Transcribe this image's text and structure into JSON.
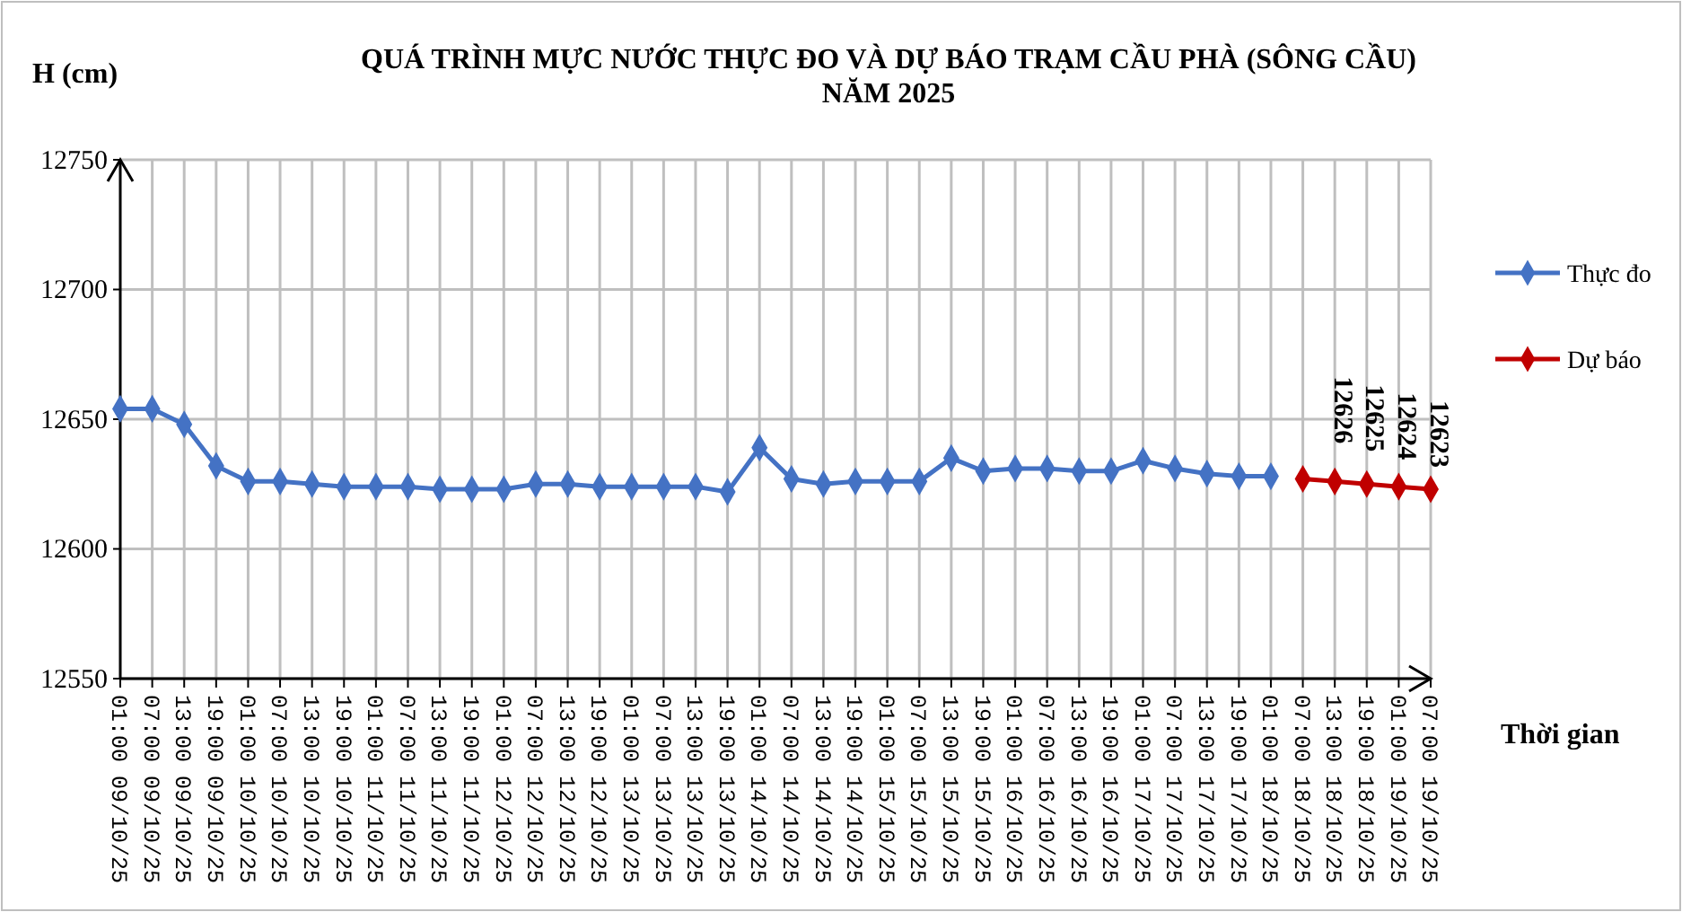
{
  "chart_data": {
    "type": "line",
    "title": "QUÁ TRÌNH MỰC NƯỚC THỰC ĐO VÀ DỰ BÁO TRẠM CẦU PHÀ (SÔNG CẦU)\nNĂM 2025",
    "ylabel": "H (cm)",
    "xlabel": "Thời gian",
    "categories": [
      "01:00 09/10/25",
      "07:00 09/10/25",
      "13:00 09/10/25",
      "19:00 09/10/25",
      "01:00 10/10/25",
      "07:00 10/10/25",
      "13:00 10/10/25",
      "19:00 10/10/25",
      "01:00 11/10/25",
      "07:00 11/10/25",
      "13:00 11/10/25",
      "19:00 11/10/25",
      "01:00 12/10/25",
      "07:00 12/10/25",
      "13:00 12/10/25",
      "19:00 12/10/25",
      "01:00 13/10/25",
      "07:00 13/10/25",
      "13:00 13/10/25",
      "19:00 13/10/25",
      "01:00 14/10/25",
      "07:00 14/10/25",
      "13:00 14/10/25",
      "19:00 14/10/25",
      "01:00 15/10/25",
      "07:00 15/10/25",
      "13:00 15/10/25",
      "19:00 15/10/25",
      "01:00 16/10/25",
      "07:00 16/10/25",
      "13:00 16/10/25",
      "19:00 16/10/25",
      "01:00 17/10/25",
      "07:00 17/10/25",
      "13:00 17/10/25",
      "19:00 17/10/25",
      "01:00 18/10/25",
      "07:00 18/10/25",
      "13:00 18/10/25",
      "19:00 18/10/25",
      "01:00 19/10/25",
      "07:00 19/10/25"
    ],
    "series": [
      {
        "name": "Thực đo",
        "color": "#4472c4",
        "values": [
          12654,
          12654,
          12648,
          12632,
          12626,
          12626,
          12625,
          12624,
          12624,
          12624,
          12623,
          12623,
          12623,
          12625,
          12625,
          12624,
          12624,
          12624,
          12624,
          12622,
          12639,
          12627,
          12625,
          12626,
          12626,
          12626,
          12635,
          12630,
          12631,
          12631,
          12630,
          12630,
          12634,
          12631,
          12629,
          12628,
          12628,
          null,
          null,
          null,
          null,
          null
        ]
      },
      {
        "name": "Dự báo",
        "color": "#c00000",
        "values": [
          null,
          null,
          null,
          null,
          null,
          null,
          null,
          null,
          null,
          null,
          null,
          null,
          null,
          null,
          null,
          null,
          null,
          null,
          null,
          null,
          null,
          null,
          null,
          null,
          null,
          null,
          null,
          null,
          null,
          null,
          null,
          null,
          null,
          null,
          null,
          null,
          null,
          12627,
          12626,
          12625,
          12624,
          12623
        ],
        "value_labels": [
          null,
          null,
          null,
          null,
          null,
          null,
          null,
          null,
          null,
          null,
          null,
          null,
          null,
          null,
          null,
          null,
          null,
          null,
          null,
          null,
          null,
          null,
          null,
          null,
          null,
          null,
          null,
          null,
          null,
          null,
          null,
          null,
          null,
          null,
          null,
          null,
          null,
          null,
          "12626",
          "12625",
          "12624",
          "12623"
        ]
      }
    ],
    "ylim": [
      12550,
      12750
    ],
    "yticks": [
      12550,
      12600,
      12650,
      12700,
      12750
    ],
    "grid": true,
    "legend": "right",
    "marker": "diamond",
    "line_style": "solid"
  }
}
